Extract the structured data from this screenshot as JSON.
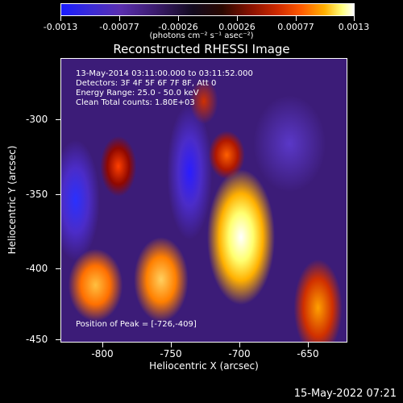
{
  "colorbar": {
    "tick_labels": [
      "-0.0013",
      "-0.00077",
      "-0.00026",
      "0.00026",
      "0.00077",
      "0.0013"
    ],
    "units": "(photons cm⁻² s⁻¹ asec⁻²)"
  },
  "title": "Reconstructed RHESSI Image",
  "info": {
    "line1": "13-May-2014 03:11:00.000 to 03:11:52.000",
    "line2": "Detectors: 3F 4F 5F 6F 7F 8F, Att 0",
    "line3": "Energy Range: 25.0 - 50.0 keV",
    "line4": "Clean     Total counts: 1.80E+03"
  },
  "peak_text": "Position of Peak = [-726,-409]",
  "x_axis": {
    "label": "Heliocentric X (arcsec)",
    "ticks": [
      "-800",
      "-750",
      "-700",
      "-650"
    ]
  },
  "y_axis": {
    "label": "Heliocentric Y (arcsec)",
    "ticks": [
      "-300",
      "-350",
      "-400",
      "-450"
    ]
  },
  "footer_date": "15-May-2022 07:21"
}
